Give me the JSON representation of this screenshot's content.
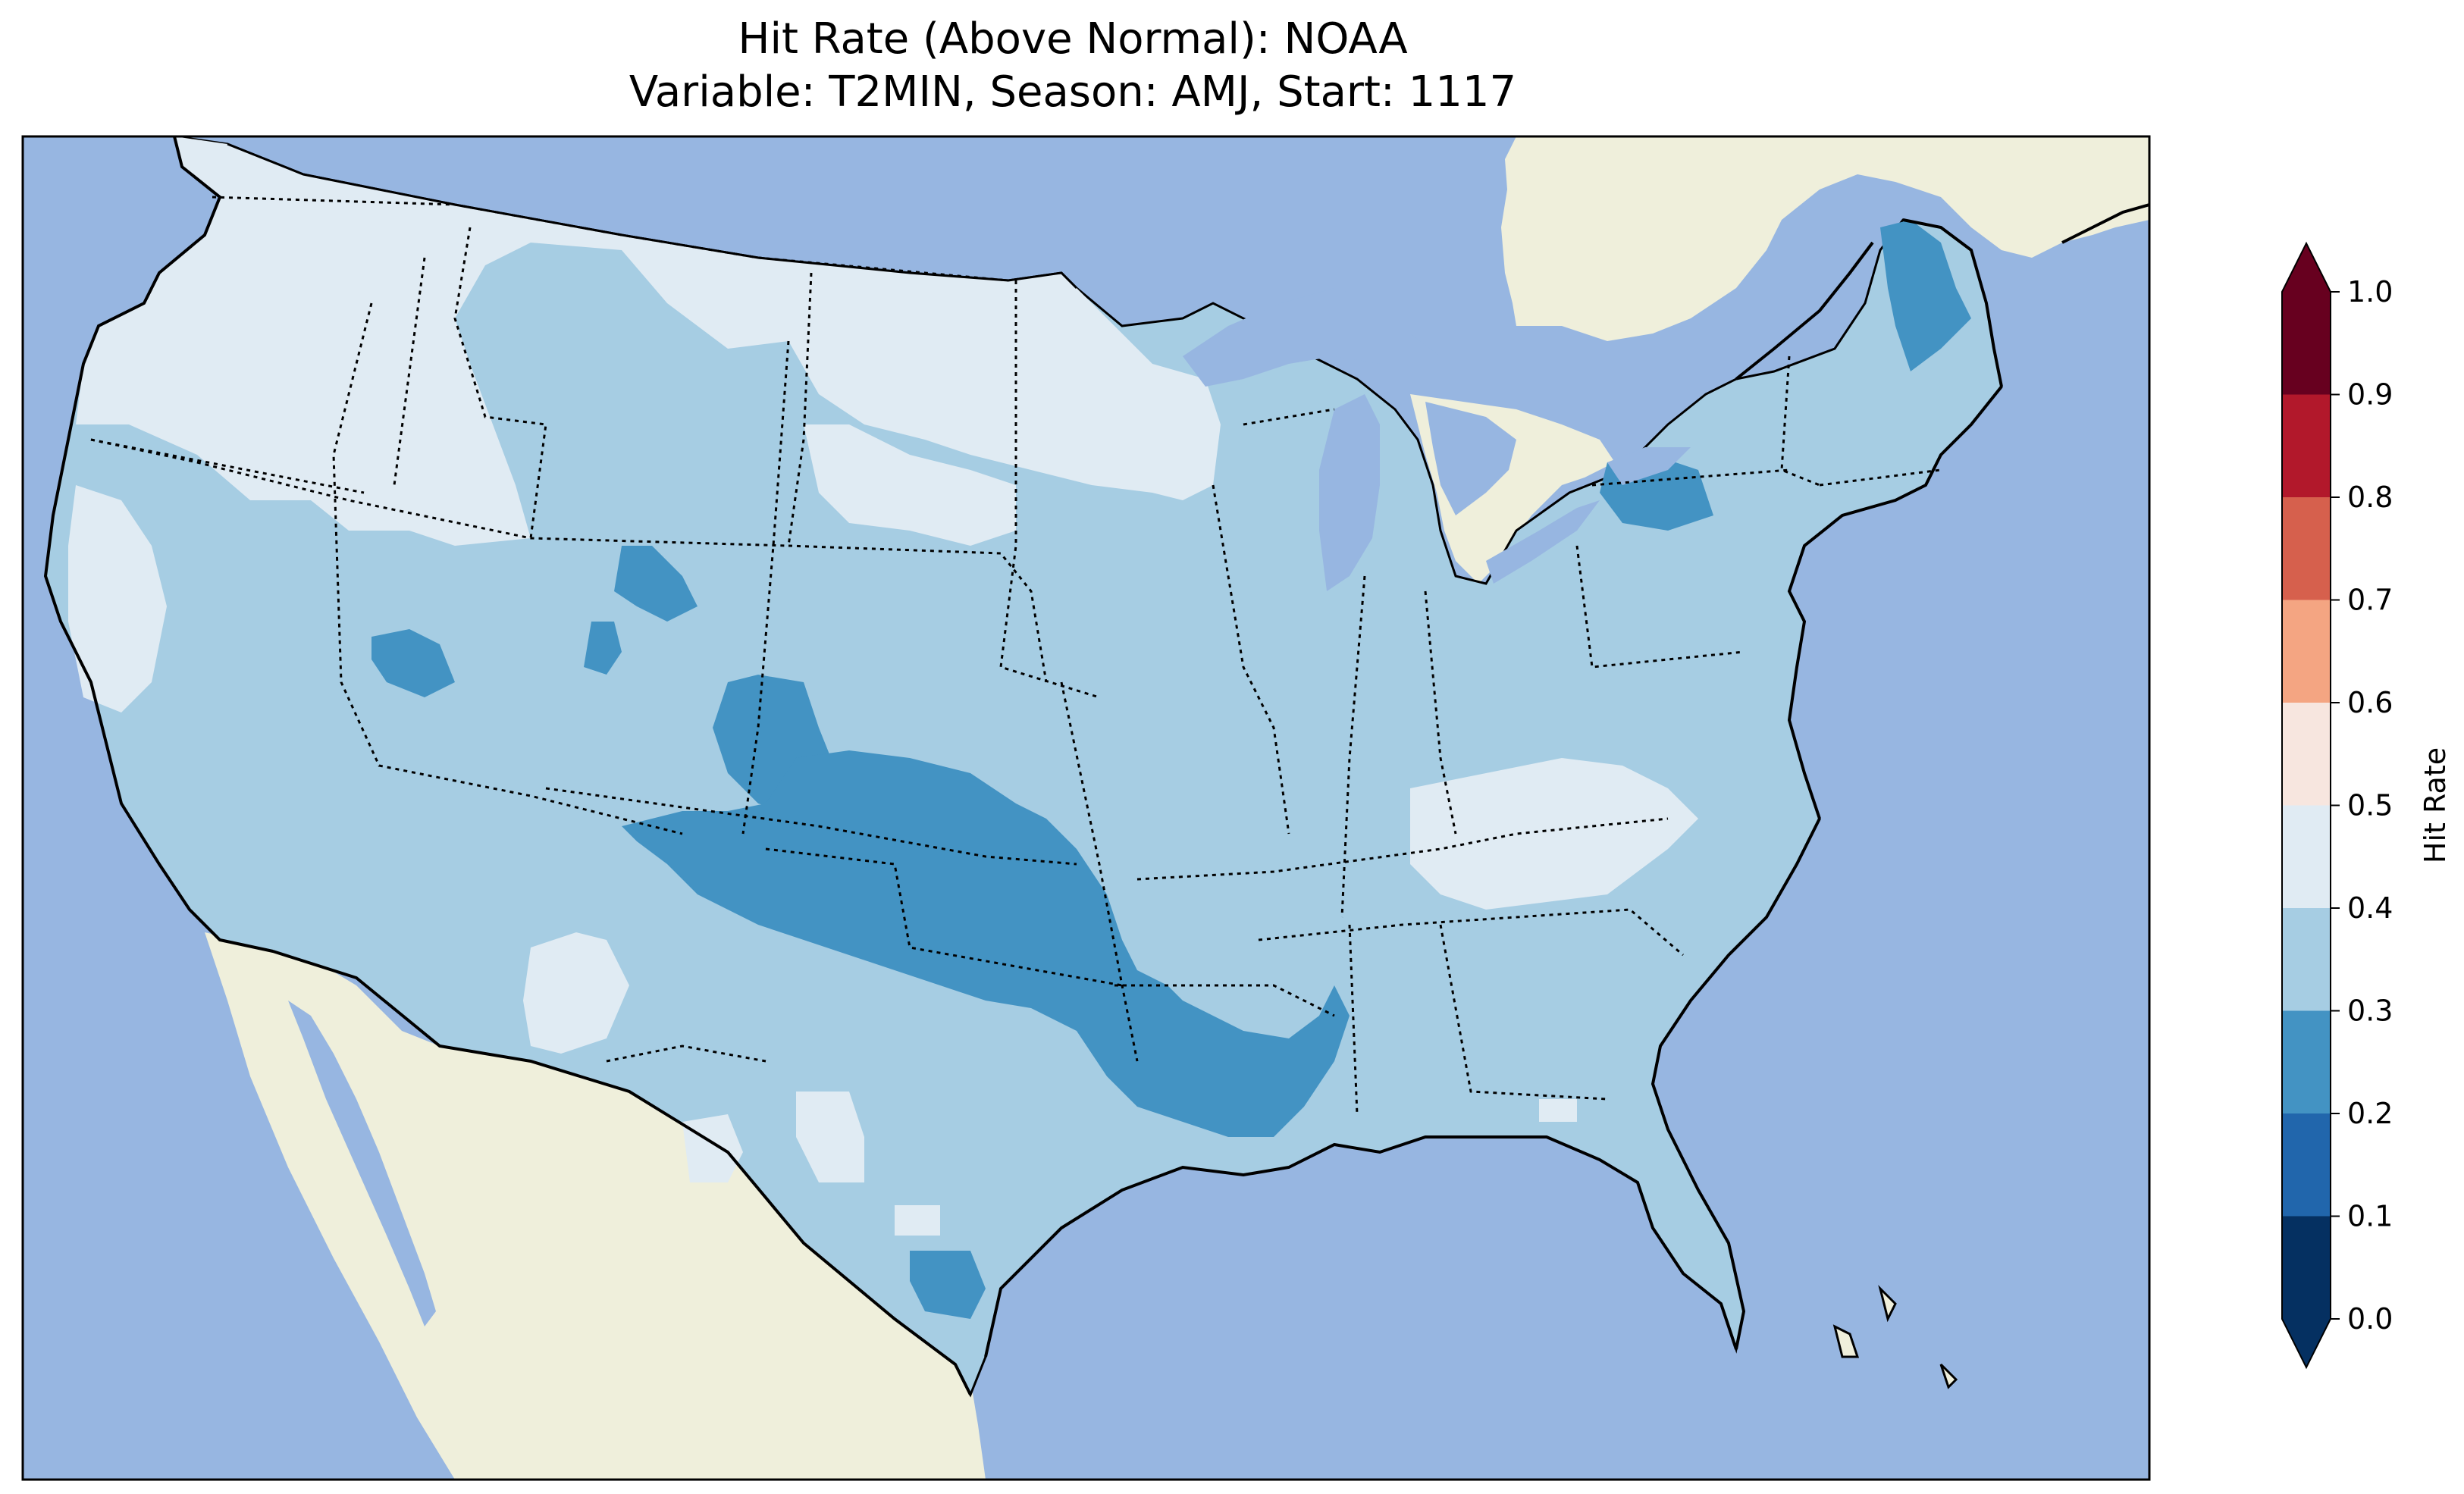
{
  "title": {
    "line1": "Hit Rate (Above Normal): NOAA",
    "line2": "Variable: T2MIN, Season: AMJ, Start: 1117"
  },
  "colors": {
    "ocean": "#97b6e1",
    "land": "#efefdb",
    "border": "#000000"
  },
  "colorbar": {
    "label": "Hit Rate",
    "ticks": [
      "0.0",
      "0.1",
      "0.2",
      "0.3",
      "0.4",
      "0.5",
      "0.6",
      "0.7",
      "0.8",
      "0.9",
      "1.0"
    ],
    "bins": [
      {
        "range": [
          0.0,
          0.1
        ],
        "color": "#053061"
      },
      {
        "range": [
          0.1,
          0.2
        ],
        "color": "#2166ac"
      },
      {
        "range": [
          0.2,
          0.3
        ],
        "color": "#4393c3"
      },
      {
        "range": [
          0.3,
          0.4
        ],
        "color": "#a6cde3"
      },
      {
        "range": [
          0.4,
          0.5
        ],
        "color": "#e0ebf3"
      },
      {
        "range": [
          0.5,
          0.6
        ],
        "color": "#f7e6df"
      },
      {
        "range": [
          0.6,
          0.7
        ],
        "color": "#f4a582"
      },
      {
        "range": [
          0.7,
          0.8
        ],
        "color": "#d6604d"
      },
      {
        "range": [
          0.8,
          0.9
        ],
        "color": "#b2182b"
      },
      {
        "range": [
          0.9,
          1.0
        ],
        "color": "#67001f"
      }
    ],
    "extend": "both"
  },
  "map": {
    "region": "Contiguous United States",
    "dominant_bin": "0.3-0.4",
    "regions": [
      {
        "area": "Pacific Northwest and northern Rockies",
        "bin": "0.4-0.5"
      },
      {
        "area": "Northern Plains (Dakotas)",
        "bin": "0.4-0.5"
      },
      {
        "area": "Southern Plains (NM/TX/OK/KS)",
        "bin": "0.2-0.3"
      },
      {
        "area": "Lower Mississippi Valley (AR/LA/MS)",
        "bin": "0.2-0.3"
      },
      {
        "area": "Upstate New York",
        "bin": "0.2-0.3"
      },
      {
        "area": "Northern Maine",
        "bin": "0.2-0.3"
      },
      {
        "area": "Southern Texas coast",
        "bin": "0.2-0.3"
      },
      {
        "area": "Central Appalachians (TN/NC/KY)",
        "bin": "0.4-0.5"
      },
      {
        "area": "Great Basin, Southwest, Midwest, Southeast, Northeast",
        "bin": "0.3-0.4"
      }
    ]
  }
}
